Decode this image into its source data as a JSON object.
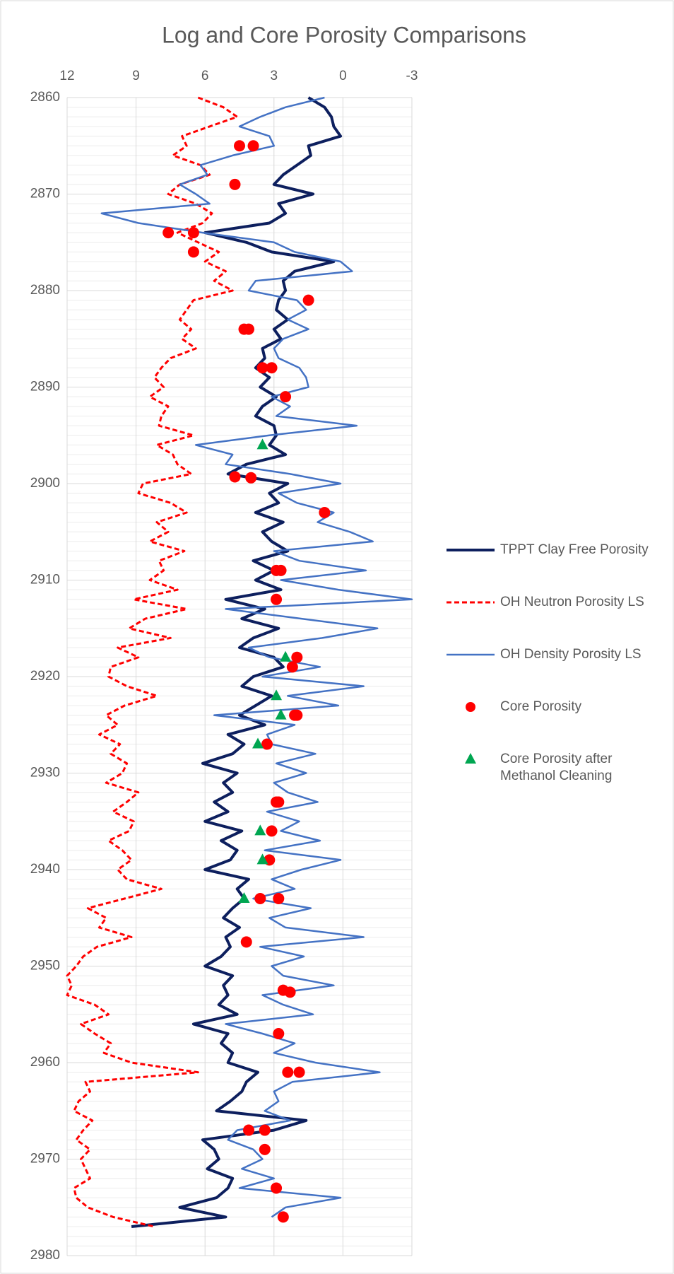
{
  "chart_data": {
    "type": "line",
    "orientation": "vertical",
    "title": "Log and Core Porosity Comparisons",
    "xlim": [
      12,
      -3
    ],
    "xticks": [
      12,
      9,
      6,
      3,
      0,
      -3
    ],
    "ylim": [
      2860,
      2980
    ],
    "yticks": [
      2860,
      2870,
      2880,
      2890,
      2900,
      2910,
      2920,
      2930,
      2940,
      2950,
      2960,
      2970,
      2980
    ],
    "grid": true,
    "minor_grid": true,
    "legend": "right",
    "y": [
      2860,
      2861,
      2862,
      2863,
      2864,
      2865,
      2866,
      2867,
      2868,
      2869,
      2870,
      2871,
      2872,
      2873,
      2874,
      2875,
      2876,
      2877,
      2878,
      2879,
      2880,
      2881,
      2882,
      2883,
      2884,
      2885,
      2886,
      2887,
      2888,
      2889,
      2890,
      2891,
      2892,
      2893,
      2894,
      2895,
      2896,
      2897,
      2898,
      2899,
      2900,
      2901,
      2902,
      2903,
      2904,
      2905,
      2906,
      2907,
      2908,
      2909,
      2910,
      2911,
      2912,
      2913,
      2914,
      2915,
      2916,
      2917,
      2918,
      2919,
      2920,
      2921,
      2922,
      2923,
      2924,
      2925,
      2926,
      2927,
      2928,
      2929,
      2930,
      2931,
      2932,
      2933,
      2934,
      2935,
      2936,
      2937,
      2938,
      2939,
      2940,
      2941,
      2942,
      2943,
      2944,
      2945,
      2946,
      2947,
      2948,
      2949,
      2950,
      2951,
      2952,
      2953,
      2954,
      2955,
      2956,
      2957,
      2958,
      2959,
      2960,
      2961,
      2962,
      2963,
      2964,
      2965,
      2966,
      2967,
      2968,
      2969,
      2970,
      2971,
      2972,
      2973,
      2974,
      2975,
      2976,
      2977
    ],
    "series": [
      {
        "name": "TPPT Clay Free Porosity",
        "type": "line",
        "color": "#0d1f5e",
        "width": 4,
        "dashed": false,
        "values": [
          1.5,
          0.8,
          0.5,
          0.4,
          0.1,
          1.5,
          1.4,
          2.0,
          2.6,
          3.0,
          1.3,
          2.8,
          2.5,
          3.2,
          6.0,
          4.2,
          3.1,
          0.4,
          2.1,
          2.6,
          2.5,
          2.8,
          2.9,
          2.4,
          3.0,
          2.7,
          3.5,
          3.4,
          3.8,
          3.2,
          3.6,
          2.9,
          3.5,
          3.8,
          3.0,
          2.9,
          3.2,
          2.5,
          4.2,
          5.0,
          2.4,
          3.2,
          2.8,
          3.8,
          2.6,
          3.5,
          3.1,
          2.4,
          3.9,
          3.0,
          3.8,
          2.7,
          5.1,
          3.4,
          4.4,
          2.8,
          3.9,
          4.5,
          3.0,
          2.6,
          3.9,
          4.4,
          3.1,
          3.8,
          4.5,
          3.4,
          5.0,
          4.3,
          4.8,
          6.1,
          4.6,
          5.2,
          4.8,
          5.6,
          5.0,
          6.0,
          4.4,
          5.3,
          4.6,
          4.9,
          6.0,
          4.1,
          4.6,
          4.3,
          4.8,
          5.2,
          4.5,
          5.1,
          4.9,
          5.3,
          6.0,
          4.8,
          5.2,
          5.0,
          5.4,
          4.6,
          6.5,
          5.0,
          5.3,
          4.8,
          5.0,
          3.7,
          4.2,
          4.4,
          4.9,
          5.5,
          1.6,
          3.0,
          6.1,
          5.6,
          5.4,
          5.9,
          4.8,
          5.0,
          5.5,
          7.1,
          5.1,
          9.2
        ]
      },
      {
        "name": "OH Neutron Porosity LS",
        "type": "line",
        "color": "#ff0000",
        "width": 3,
        "dashed": true,
        "values": [
          6.3,
          5.2,
          4.6,
          5.8,
          7.0,
          6.8,
          7.4,
          6.2,
          5.8,
          7.1,
          7.6,
          6.4,
          5.7,
          6.1,
          7.2,
          6.3,
          5.4,
          6.0,
          5.1,
          5.6,
          4.8,
          6.5,
          6.8,
          7.1,
          6.6,
          7.0,
          6.4,
          7.5,
          7.9,
          8.2,
          7.8,
          8.4,
          7.6,
          7.9,
          8.0,
          6.5,
          8.1,
          7.4,
          7.2,
          6.6,
          8.7,
          8.9,
          7.5,
          6.8,
          8.1,
          7.6,
          8.4,
          6.9,
          8.0,
          7.8,
          8.4,
          7.2,
          9.1,
          6.8,
          8.6,
          9.3,
          7.5,
          9.8,
          8.9,
          10.1,
          10.2,
          9.4,
          8.1,
          9.5,
          10.3,
          9.8,
          10.6,
          9.7,
          10.1,
          9.4,
          9.6,
          10.3,
          8.9,
          9.4,
          10.0,
          9.1,
          9.3,
          10.2,
          9.6,
          9.2,
          9.8,
          9.4,
          7.9,
          9.5,
          11.1,
          10.3,
          10.6,
          9.2,
          10.7,
          11.3,
          11.6,
          12.0,
          11.8,
          12.0,
          10.8,
          10.2,
          11.4,
          10.8,
          10.1,
          10.4,
          9.2,
          6.3,
          11.2,
          11.0,
          11.5,
          11.7,
          10.9,
          11.3,
          11.6,
          11.0,
          11.4,
          11.2,
          11.0,
          11.7,
          11.6,
          11.1,
          10.0,
          8.2
        ]
      },
      {
        "name": "OH Density Porosity LS",
        "type": "line",
        "color": "#4472c4",
        "width": 2.5,
        "dashed": false,
        "values": [
          0.8,
          2.5,
          3.6,
          4.5,
          3.2,
          3.0,
          4.8,
          6.2,
          5.9,
          7.1,
          6.4,
          5.8,
          10.5,
          8.9,
          6.1,
          3.0,
          2.1,
          0.1,
          -0.4,
          3.8,
          4.1,
          2.0,
          1.6,
          2.4,
          1.5,
          2.6,
          3.0,
          2.8,
          1.9,
          1.6,
          1.5,
          3.1,
          2.3,
          2.9,
          -0.6,
          3.2,
          6.4,
          4.8,
          5.1,
          2.3,
          0.1,
          2.8,
          2.0,
          0.4,
          1.1,
          -0.3,
          -1.3,
          3.0,
          1.9,
          -1.0,
          2.7,
          0.2,
          -3.0,
          5.1,
          1.8,
          -1.5,
          0.9,
          4.1,
          3.2,
          1.0,
          3.5,
          -0.9,
          2.4,
          0.2,
          5.6,
          2.1,
          3.3,
          3.1,
          1.2,
          2.9,
          1.6,
          3.0,
          2.4,
          1.1,
          3.3,
          1.9,
          2.7,
          1.0,
          3.4,
          0.1,
          1.8,
          3.1,
          2.1,
          3.9,
          1.4,
          3.2,
          2.5,
          -0.9,
          3.6,
          1.7,
          3.1,
          2.6,
          0.4,
          3.5,
          2.6,
          1.3,
          5.1,
          3.5,
          2.1,
          3.0,
          1.2,
          -1.6,
          2.2,
          3.0,
          2.8,
          3.4,
          2.3,
          4.6,
          5.0,
          3.9,
          3.5,
          4.4,
          3.0,
          4.5,
          0.1,
          2.5,
          3.1,
          null
        ]
      },
      {
        "name": "Core Porosity",
        "type": "scatter",
        "marker": "circle",
        "color": "#ff0000",
        "y": [
          2865,
          2865,
          2869,
          2874,
          2874,
          2876,
          2881,
          2884,
          2884,
          2888,
          2888,
          2891,
          2899.3,
          2899.4,
          2903,
          2909,
          2909,
          2912,
          2918,
          2919,
          2924,
          2924,
          2927,
          2933,
          2933,
          2936,
          2939,
          2943,
          2943,
          2947.5,
          2952.5,
          2952.7,
          2957,
          2961,
          2961,
          2967,
          2967,
          2969,
          2973,
          2976
        ],
        "values": [
          4.5,
          3.9,
          4.7,
          7.6,
          6.5,
          6.5,
          1.5,
          4.3,
          4.1,
          3.5,
          3.1,
          2.5,
          4.7,
          4.0,
          0.8,
          2.9,
          2.7,
          2.9,
          2.0,
          2.2,
          2.1,
          2.0,
          3.3,
          2.9,
          2.8,
          3.1,
          3.2,
          3.6,
          2.8,
          4.2,
          2.6,
          2.3,
          2.8,
          2.4,
          1.9,
          4.1,
          3.4,
          3.4,
          2.9,
          2.6
        ]
      },
      {
        "name": "Core Porosity after Methanol Cleaning",
        "type": "scatter",
        "marker": "triangle",
        "color": "#00a651",
        "y": [
          2896,
          2918,
          2922,
          2924,
          2927,
          2936,
          2939,
          2943
        ],
        "values": [
          3.5,
          2.5,
          2.9,
          2.7,
          3.7,
          3.6,
          3.5,
          4.3
        ]
      }
    ]
  }
}
